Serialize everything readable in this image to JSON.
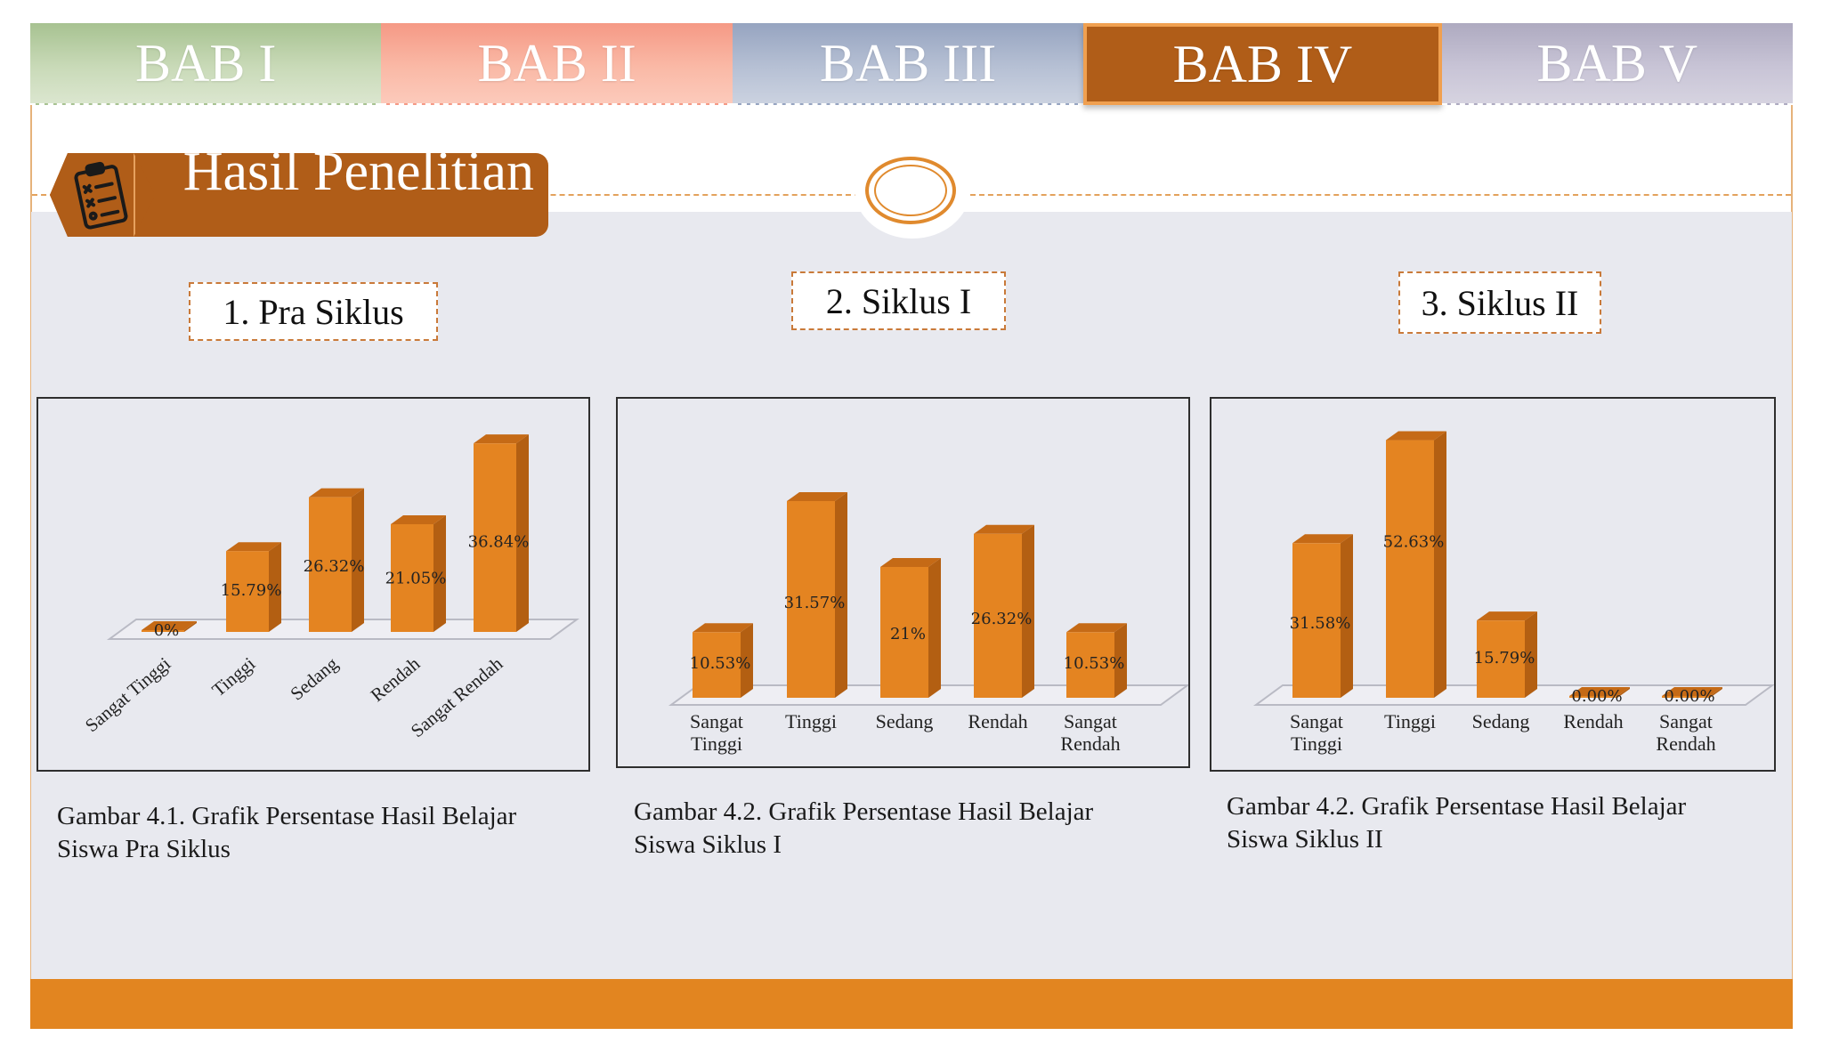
{
  "tabs": [
    {
      "label": "BAB I",
      "active": false
    },
    {
      "label": "BAB II",
      "active": false
    },
    {
      "label": "BAB III",
      "active": false
    },
    {
      "label": "BAB IV",
      "active": true
    },
    {
      "label": "BAB V",
      "active": false
    }
  ],
  "section_title": "Hasil Penelitian",
  "icons": {
    "header": "checklist-clipboard-icon",
    "center": "ring-ornament-icon"
  },
  "colors": {
    "bar_front": "#e48421",
    "bar_side": "#b35f12",
    "bar_top": "#c56a16",
    "accent": "#b05d18",
    "footer": "#e28520"
  },
  "cycles": [
    {
      "label": "1. Pra Siklus"
    },
    {
      "label": "2. Siklus I"
    },
    {
      "label": "3. Siklus II"
    }
  ],
  "captions": [
    {
      "line1": "Gambar 4.1. Grafik Persentase Hasil Belajar",
      "line2": "Siswa Pra Siklus"
    },
    {
      "line1": "Gambar 4.2. Grafik Persentase Hasil Belajar",
      "line2": "Siswa Siklus I"
    },
    {
      "line1": "Gambar 4.2. Grafik Persentase Hasil Belajar",
      "line2": "Siswa Siklus II"
    }
  ],
  "chart_data": [
    {
      "type": "bar",
      "title": "1. Pra Siklus",
      "categories": [
        "Sangat Tinggi",
        "Tinggi",
        "Sedang",
        "Rendah",
        "Sangat Rendah"
      ],
      "values": [
        0,
        15.79,
        26.32,
        21.05,
        36.84
      ],
      "data_labels": [
        "0%",
        "15.79%",
        "26.32%",
        "21.05%",
        "36.84%"
      ],
      "ylim": [
        0,
        40
      ],
      "label_style": "rotated",
      "grid": false
    },
    {
      "type": "bar",
      "title": "2. Siklus I",
      "categories": [
        "Sangat Tinggi",
        "Tinggi",
        "Sedang",
        "Rendah",
        "Sangat Rendah"
      ],
      "values": [
        10.53,
        31.57,
        21,
        26.32,
        10.53
      ],
      "data_labels": [
        "10.53%",
        "31.57%",
        "21%",
        "26.32%",
        "10.53%"
      ],
      "ylim": [
        0,
        40
      ],
      "label_style": "wrapped",
      "grid": false
    },
    {
      "type": "bar",
      "title": "3. Siklus II",
      "categories": [
        "Sangat Tinggi",
        "Tinggi",
        "Sedang",
        "Rendah",
        "Sangat Rendah"
      ],
      "values": [
        31.58,
        52.63,
        15.79,
        0,
        0
      ],
      "data_labels": [
        "31.58%",
        "52.63%",
        "15.79%",
        "0.00%",
        "0.00%"
      ],
      "ylim": [
        0,
        60
      ],
      "label_style": "wrapped",
      "grid": false
    }
  ]
}
